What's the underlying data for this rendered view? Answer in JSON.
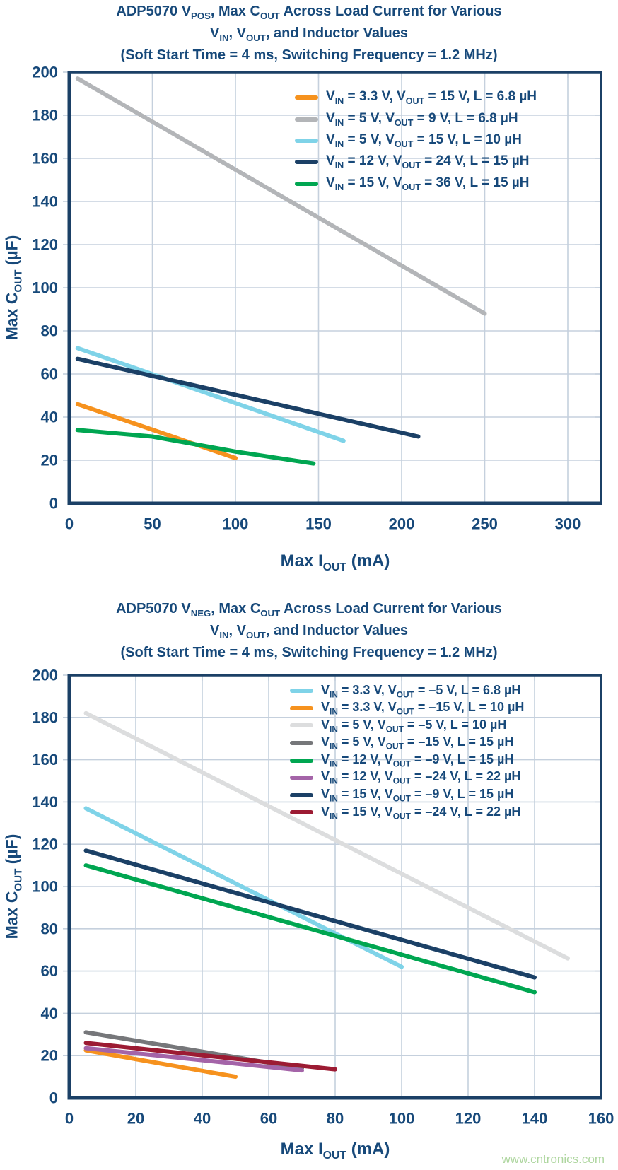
{
  "page": {
    "watermark": "www.cntronics.com"
  },
  "palette": {
    "navy_text": "#17497A",
    "axis": "#1B4066",
    "grid": "#C5D0DD",
    "watermark_green": "#AED69F"
  },
  "chart_data": [
    {
      "type": "line",
      "title_lines": [
        "ADP5070 V~POS~, Max C~OUT~ Across Load Current for Various",
        "V~IN~, V~OUT~, and Inductor Values",
        "(Soft Start Time = 4 ms, Switching Frequency = 1.2 MHz)"
      ],
      "xlabel": "Max I~OUT~ (mA)",
      "ylabel": "Max C~OUT~ (µF)",
      "xlim": [
        0,
        320
      ],
      "ylim": [
        0,
        200
      ],
      "xticks": [
        0,
        50,
        100,
        150,
        200,
        250,
        300
      ],
      "yticks": [
        0,
        20,
        40,
        60,
        80,
        100,
        120,
        140,
        160,
        180,
        200
      ],
      "grid": true,
      "legend_position": "top-right",
      "series": [
        {
          "label": "V~IN~ = 3.3 V, V~OUT~ = 15 V, L = 6.8 µH",
          "color": "#F6921E",
          "points": [
            [
              5,
              46
            ],
            [
              100,
              21
            ]
          ]
        },
        {
          "label": "V~IN~ = 5 V, V~OUT~ = 9 V, L = 6.8 µH",
          "color": "#B3B5B8",
          "points": [
            [
              5,
              197
            ],
            [
              250,
              88
            ]
          ]
        },
        {
          "label": "V~IN~ = 5 V, V~OUT~ = 15 V, L = 10 µH",
          "color": "#7FD3E8",
          "points": [
            [
              5,
              72
            ],
            [
              165,
              29
            ]
          ]
        },
        {
          "label": "V~IN~ = 12 V, V~OUT~ = 24 V, L = 15 µH",
          "color": "#1B4066",
          "points": [
            [
              5,
              67
            ],
            [
              210,
              31
            ]
          ]
        },
        {
          "label": "V~IN~ = 15 V, V~OUT~ = 36 V, L = 15 µH",
          "color": "#00A651",
          "points": [
            [
              5,
              34
            ],
            [
              50,
              31
            ],
            [
              100,
              24
            ],
            [
              147,
              18.5
            ]
          ]
        }
      ]
    },
    {
      "type": "line",
      "title_lines": [
        "ADP5070 V~NEG~, Max C~OUT~ Across Load Current for Various",
        "V~IN~, V~OUT~, and Inductor Values",
        "(Soft Start Time = 4 ms, Switching Frequency = 1.2 MHz)"
      ],
      "xlabel": "Max I~OUT~ (mA)",
      "ylabel": "Max C~OUT~ (µF)",
      "xlim": [
        0,
        160
      ],
      "ylim": [
        0,
        200
      ],
      "xticks": [
        0,
        20,
        40,
        60,
        80,
        100,
        120,
        140,
        160
      ],
      "yticks": [
        0,
        20,
        40,
        60,
        80,
        100,
        120,
        140,
        160,
        180,
        200
      ],
      "grid": true,
      "legend_position": "top-right",
      "series": [
        {
          "label": "V~IN~ = 3.3 V, V~OUT~ = –5 V, L = 6.8 µH",
          "color": "#7FD3E8",
          "points": [
            [
              5,
              137
            ],
            [
              100,
              62
            ]
          ]
        },
        {
          "label": "V~IN~ = 3.3 V, V~OUT~ = –15 V, L = 10 µH",
          "color": "#F6921E",
          "points": [
            [
              5,
              22.5
            ],
            [
              50,
              10
            ]
          ]
        },
        {
          "label": "V~IN~ = 5 V, V~OUT~ = –5 V, L = 10 µH",
          "color": "#DCDDDE",
          "points": [
            [
              5,
              182
            ],
            [
              150,
              66
            ]
          ]
        },
        {
          "label": "V~IN~ = 5 V, V~OUT~ = –15 V, L = 15 µH",
          "color": "#76777A",
          "points": [
            [
              5,
              31
            ],
            [
              70,
              14
            ]
          ]
        },
        {
          "label": "V~IN~ = 12 V, V~OUT~ = –9 V, L = 15 µH",
          "color": "#00A651",
          "points": [
            [
              5,
              110
            ],
            [
              140,
              50
            ]
          ]
        },
        {
          "label": "V~IN~ = 12 V, V~OUT~ = –24 V, L = 22 µH",
          "color": "#A464A8",
          "points": [
            [
              5,
              23.5
            ],
            [
              70,
              13
            ]
          ]
        },
        {
          "label": "V~IN~ = 15 V, V~OUT~ = –9 V, L = 15 µH",
          "color": "#1B4066",
          "points": [
            [
              5,
              117
            ],
            [
              140,
              57
            ]
          ]
        },
        {
          "label": "V~IN~ = 15 V, V~OUT~ = –24 V, L = 22 µH",
          "color": "#9C1B33",
          "points": [
            [
              5,
              26
            ],
            [
              80,
              13.5
            ]
          ]
        }
      ]
    }
  ]
}
